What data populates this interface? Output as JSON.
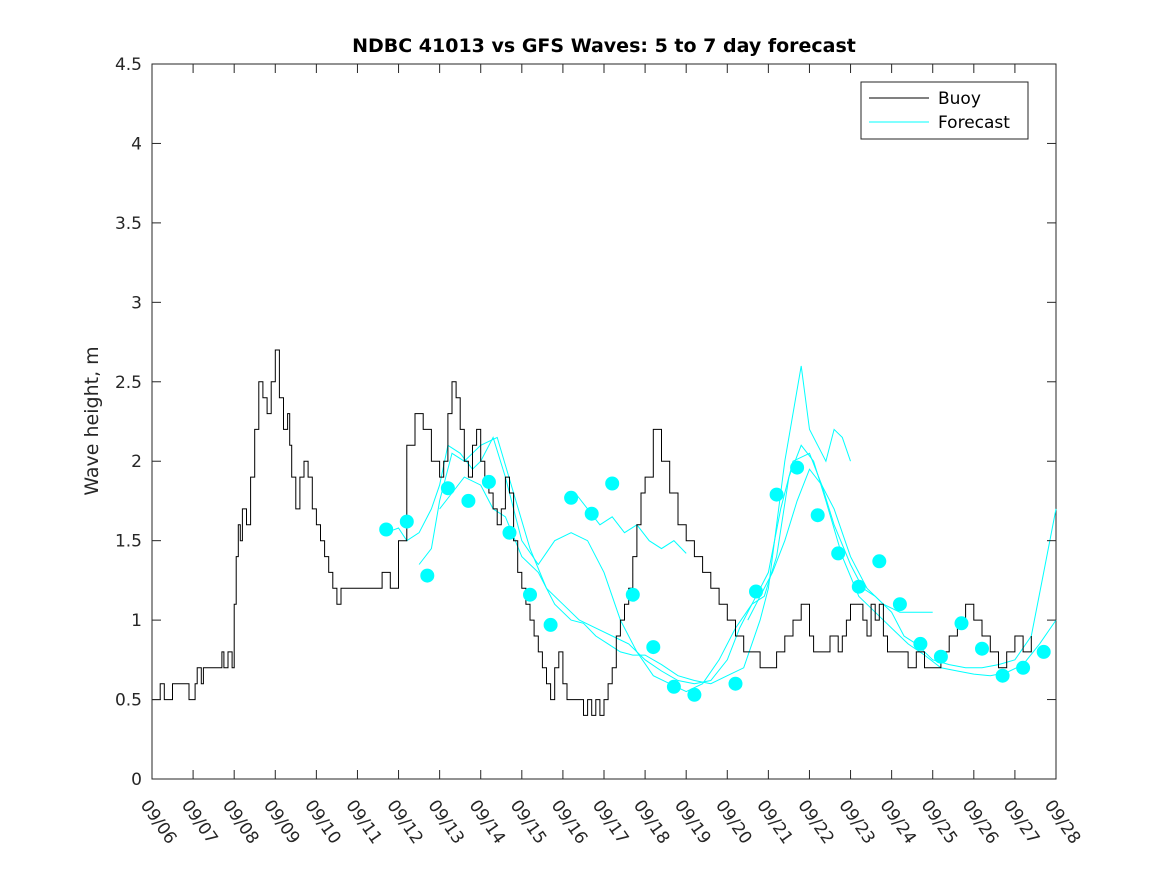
{
  "chart_data": {
    "type": "line",
    "title": "NDBC 41013 vs GFS Waves: 5 to 7 day forecast",
    "xlabel": "",
    "ylabel": "Wave height, m",
    "xlim": [
      0,
      22
    ],
    "ylim": [
      0,
      4.5
    ],
    "yticks": [
      0,
      0.5,
      1,
      1.5,
      2,
      2.5,
      3,
      3.5,
      4,
      4.5
    ],
    "yticklabels": [
      "0",
      "0.5",
      "1",
      "1.5",
      "2",
      "2.5",
      "3",
      "3.5",
      "4",
      "4.5"
    ],
    "xticks": [
      0,
      1,
      2,
      3,
      4,
      5,
      6,
      7,
      8,
      9,
      10,
      11,
      12,
      13,
      14,
      15,
      16,
      17,
      18,
      19,
      20,
      21,
      22
    ],
    "xticklabels": [
      "09/06",
      "09/07",
      "09/08",
      "09/09",
      "09/10",
      "09/11",
      "09/12",
      "09/13",
      "09/14",
      "09/15",
      "09/16",
      "09/17",
      "09/18",
      "09/19",
      "09/20",
      "09/21",
      "09/22",
      "09/23",
      "09/24",
      "09/25",
      "09/26",
      "09/27",
      "09/28"
    ],
    "x_units": "days since 09/06",
    "legend": {
      "position": "top-right",
      "entries": [
        "Buoy",
        "Forecast"
      ]
    },
    "colors": {
      "buoy": "#000000",
      "forecast": "#00ffff",
      "axis": "#262626"
    },
    "series": [
      {
        "name": "Buoy",
        "color": "#000000",
        "style": "step",
        "x": [
          0,
          0.2,
          0.3,
          0.5,
          0.6,
          0.9,
          1.05,
          1.1,
          1.2,
          1.25,
          1.35,
          1.4,
          1.6,
          1.7,
          1.75,
          1.85,
          1.95,
          2.0,
          2.05,
          2.1,
          2.15,
          2.2,
          2.3,
          2.4,
          2.5,
          2.6,
          2.7,
          2.8,
          2.9,
          3.0,
          3.1,
          3.2,
          3.3,
          3.35,
          3.4,
          3.5,
          3.6,
          3.7,
          3.8,
          3.9,
          4.0,
          4.1,
          4.2,
          4.3,
          4.4,
          4.5,
          4.6,
          4.7,
          4.8,
          4.9,
          5.0,
          5.2,
          5.4,
          5.6,
          5.8,
          6.0,
          6.2,
          6.4,
          6.6,
          6.8,
          7.0,
          7.1,
          7.2,
          7.3,
          7.4,
          7.5,
          7.6,
          7.7,
          7.8,
          7.9,
          8.0,
          8.1,
          8.2,
          8.3,
          8.4,
          8.5,
          8.6,
          8.7,
          8.8,
          8.9,
          9.0,
          9.1,
          9.2,
          9.3,
          9.4,
          9.5,
          9.6,
          9.7,
          9.8,
          9.9,
          10.0,
          10.1,
          10.2,
          10.3,
          10.4,
          10.5,
          10.6,
          10.7,
          10.8,
          10.9,
          11.0,
          11.1,
          11.2,
          11.3,
          11.4,
          11.5,
          11.6,
          11.7,
          11.8,
          11.9,
          12.0,
          12.2,
          12.4,
          12.6,
          12.8,
          13.0,
          13.2,
          13.4,
          13.6,
          13.8,
          14.0,
          14.2,
          14.4,
          14.6,
          14.8,
          15.0,
          15.2,
          15.4,
          15.6,
          15.8,
          16.0,
          16.1,
          16.2,
          16.3,
          16.4,
          16.5,
          16.6,
          16.7,
          16.8,
          16.9,
          17.0,
          17.1,
          17.2,
          17.3,
          17.4,
          17.5,
          17.6,
          17.7,
          17.8,
          17.9,
          18.0,
          18.2,
          18.4,
          18.6,
          18.8,
          19.0,
          19.2,
          19.4,
          19.6,
          19.8,
          20.0,
          20.2,
          20.4,
          20.6,
          20.8,
          21.0,
          21.2,
          21.4
        ],
        "y": [
          0.5,
          0.6,
          0.5,
          0.6,
          0.6,
          0.5,
          0.6,
          0.7,
          0.6,
          0.7,
          0.7,
          0.7,
          0.7,
          0.8,
          0.7,
          0.8,
          0.7,
          1.1,
          1.4,
          1.6,
          1.5,
          1.7,
          1.6,
          1.9,
          2.2,
          2.5,
          2.4,
          2.3,
          2.5,
          2.7,
          2.4,
          2.2,
          2.3,
          2.1,
          1.9,
          1.7,
          1.9,
          2.0,
          1.9,
          1.7,
          1.6,
          1.5,
          1.4,
          1.3,
          1.2,
          1.1,
          1.2,
          1.2,
          1.2,
          1.2,
          1.2,
          1.2,
          1.2,
          1.3,
          1.2,
          1.5,
          2.1,
          2.3,
          2.2,
          2.0,
          1.9,
          2.0,
          2.3,
          2.5,
          2.4,
          2.2,
          2.0,
          1.9,
          2.1,
          2.2,
          2.0,
          1.9,
          1.8,
          1.7,
          1.6,
          1.7,
          1.9,
          1.8,
          1.5,
          1.3,
          1.2,
          1.1,
          1.0,
          0.9,
          0.8,
          0.7,
          0.6,
          0.5,
          0.7,
          0.8,
          0.6,
          0.5,
          0.5,
          0.5,
          0.5,
          0.4,
          0.5,
          0.4,
          0.5,
          0.4,
          0.5,
          0.6,
          0.7,
          0.9,
          1.0,
          1.1,
          1.2,
          1.4,
          1.6,
          1.8,
          1.9,
          2.2,
          2.0,
          1.8,
          1.6,
          1.5,
          1.4,
          1.3,
          1.2,
          1.1,
          1.0,
          0.9,
          0.8,
          0.8,
          0.7,
          0.7,
          0.8,
          0.9,
          1.0,
          1.1,
          0.9,
          0.8,
          0.8,
          0.8,
          0.8,
          0.9,
          0.9,
          0.8,
          0.9,
          1.0,
          1.1,
          1.1,
          1.1,
          1.0,
          0.9,
          1.1,
          1.0,
          1.1,
          0.9,
          0.8,
          0.8,
          0.8,
          0.7,
          0.8,
          0.7,
          0.7,
          0.8,
          0.9,
          1.0,
          1.1,
          1.0,
          0.9,
          0.8,
          0.7,
          0.8,
          0.9,
          0.8,
          0.9
        ]
      },
      {
        "name": "Forecast",
        "color": "#00ffff",
        "x": [
          5.7,
          6.0,
          6.2,
          6.5,
          6.8,
          7.0,
          7.2,
          7.5,
          7.8,
          8.0,
          8.3,
          8.6,
          9.0,
          9.4,
          9.8,
          10.2,
          10.6,
          11.0,
          11.4,
          11.8,
          12.2,
          12.6,
          13.0,
          13.4,
          13.8,
          14.2,
          14.6,
          15.0,
          15.3,
          15.6,
          16.0,
          16.3,
          16.6,
          17.0,
          17.3,
          17.6,
          18.0,
          18.3,
          18.6,
          19.0,
          19.4,
          19.8,
          20.2,
          20.6,
          21.0,
          21.4,
          21.7,
          22.0
        ],
        "y": [
          1.55,
          1.58,
          1.5,
          1.55,
          1.7,
          1.85,
          2.1,
          2.05,
          1.95,
          2.0,
          2.15,
          1.9,
          1.5,
          1.35,
          1.5,
          1.55,
          1.5,
          1.3,
          1.0,
          0.8,
          0.65,
          0.6,
          0.55,
          0.6,
          0.75,
          0.95,
          1.1,
          1.3,
          1.7,
          2.0,
          2.05,
          1.85,
          1.6,
          1.35,
          1.2,
          1.15,
          1.05,
          0.9,
          0.85,
          0.75,
          0.72,
          0.7,
          0.7,
          0.72,
          0.75,
          0.9,
          1.3,
          1.7
        ]
      },
      {
        "name": "Forecast",
        "color": "#00ffff",
        "x": [
          6.5,
          6.8,
          7.0,
          7.3,
          7.6,
          8.0,
          8.4,
          8.8,
          9.2,
          9.6,
          10.0,
          10.4,
          10.8,
          11.2,
          11.6,
          12.0,
          12.4,
          12.8,
          13.2,
          13.6,
          14.0,
          14.3,
          14.6,
          14.9,
          15.2,
          15.5,
          15.8,
          16.1,
          16.4,
          16.8,
          17.2,
          17.6,
          18.0,
          18.4,
          18.8,
          19.2,
          19.6,
          20.0,
          20.4,
          20.8,
          21.2,
          21.6,
          22.0
        ],
        "y": [
          1.35,
          1.45,
          1.75,
          2.05,
          2.0,
          2.1,
          2.15,
          1.8,
          1.45,
          1.2,
          1.1,
          1.0,
          0.95,
          0.9,
          0.85,
          0.75,
          0.68,
          0.62,
          0.6,
          0.62,
          0.75,
          0.95,
          1.1,
          1.15,
          1.4,
          1.9,
          2.1,
          2.0,
          1.75,
          1.4,
          1.15,
          1.05,
          0.95,
          0.85,
          0.78,
          0.7,
          0.68,
          0.66,
          0.65,
          0.67,
          0.72,
          0.85,
          1.0
        ]
      },
      {
        "name": "Forecast",
        "color": "#00ffff",
        "x": [
          7.0,
          7.3,
          7.6,
          8.0,
          8.3,
          8.6,
          9.0,
          9.4,
          9.8,
          10.2,
          10.5,
          10.8,
          11.1,
          11.4,
          11.7,
          12.0,
          12.4,
          12.8,
          13.2,
          13.6,
          14.0,
          14.4,
          14.8,
          15.0,
          15.2,
          15.4,
          15.6,
          15.8,
          16.0,
          16.2,
          16.4,
          16.6,
          16.8,
          17.0
        ],
        "y": [
          1.7,
          1.8,
          1.9,
          1.85,
          1.7,
          1.65,
          1.4,
          1.3,
          1.1,
          1.0,
          0.98,
          0.9,
          0.85,
          0.8,
          0.78,
          0.78,
          0.72,
          0.65,
          0.62,
          0.6,
          0.65,
          0.7,
          1.0,
          1.2,
          1.6,
          2.0,
          2.3,
          2.6,
          2.2,
          2.1,
          2.0,
          2.2,
          2.15,
          2.0
        ]
      },
      {
        "name": "Forecast",
        "color": "#00ffff",
        "x": [
          10.3,
          10.6,
          10.9,
          11.2,
          11.5,
          11.8,
          12.1,
          12.4,
          12.7,
          13.0
        ],
        "y": [
          1.8,
          1.7,
          1.6,
          1.65,
          1.55,
          1.6,
          1.5,
          1.45,
          1.5,
          1.42
        ]
      },
      {
        "name": "Forecast",
        "color": "#00ffff",
        "x": [
          14.5,
          14.8,
          15.1,
          15.4,
          15.7,
          16.0,
          16.3,
          16.6,
          17.0,
          17.4,
          17.8,
          18.2,
          18.6,
          19.0
        ],
        "y": [
          1.0,
          1.15,
          1.3,
          1.5,
          1.75,
          1.95,
          1.85,
          1.7,
          1.4,
          1.2,
          1.1,
          1.05,
          1.05,
          1.05
        ]
      }
    ],
    "markers": {
      "name": "Forecast",
      "color": "#00ffff",
      "x": [
        5.7,
        6.2,
        6.7,
        7.2,
        7.7,
        8.2,
        8.7,
        9.2,
        9.7,
        10.2,
        10.7,
        11.2,
        11.7,
        12.2,
        12.7,
        13.2,
        14.2,
        14.7,
        15.2,
        15.7,
        16.2,
        16.7,
        17.2,
        17.7,
        18.2,
        18.7,
        19.2,
        19.7,
        20.2,
        20.7,
        21.2,
        21.7
      ],
      "y": [
        1.57,
        1.62,
        1.28,
        1.83,
        1.75,
        1.87,
        1.55,
        1.16,
        0.97,
        1.77,
        1.67,
        1.86,
        1.16,
        0.83,
        0.58,
        0.53,
        0.6,
        1.18,
        1.79,
        1.96,
        1.66,
        1.42,
        1.21,
        1.37,
        1.1,
        0.85,
        0.77,
        0.98,
        0.82,
        0.65,
        0.7,
        0.8
      ]
    }
  }
}
